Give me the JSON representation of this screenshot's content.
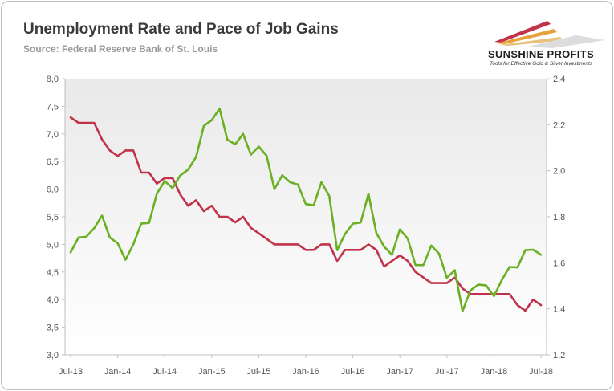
{
  "header": {
    "title": "Unemployment Rate and Pace of Job Gains",
    "subtitle": "Source: Federal Reserve Bank of St. Louis"
  },
  "logo": {
    "name": "SUNSHINE PROFITS",
    "tagline": "Tools for Effective Gold & Silver Investments"
  },
  "chart_data": {
    "type": "line",
    "title": "Unemployment Rate and Pace of Job Gains",
    "x_tick_labels": [
      "Jul-13",
      "Jan-14",
      "Jul-14",
      "Jan-15",
      "Jul-15",
      "Jan-16",
      "Jul-16",
      "Jan-17",
      "Jul-17",
      "Jan-18",
      "Jul-18"
    ],
    "y_left": {
      "range": [
        3.0,
        8.0
      ],
      "ticks": [
        "3,0",
        "3,5",
        "4,0",
        "4,5",
        "5,0",
        "5,5",
        "6,0",
        "6,5",
        "7,0",
        "7,5",
        "8,0"
      ]
    },
    "y_right": {
      "range": [
        1.2,
        2.4
      ],
      "ticks": [
        "1,2",
        "1,4",
        "1,6",
        "1,8",
        "2,0",
        "2,2",
        "2,4"
      ]
    },
    "grid": false,
    "legend": "none",
    "series": [
      {
        "axis": "left",
        "color": "#c0334a",
        "values": [
          7.3,
          7.2,
          7.2,
          7.2,
          6.9,
          6.7,
          6.6,
          6.7,
          6.7,
          6.3,
          6.3,
          6.1,
          6.2,
          6.2,
          5.9,
          5.7,
          5.8,
          5.6,
          5.7,
          5.5,
          5.5,
          5.4,
          5.5,
          5.3,
          5.2,
          5.1,
          5.0,
          5.0,
          5.0,
          5.0,
          4.9,
          4.9,
          5.0,
          5.0,
          4.7,
          4.9,
          4.9,
          4.9,
          5.0,
          4.9,
          4.6,
          4.7,
          4.8,
          4.7,
          4.5,
          4.4,
          4.3,
          4.3,
          4.3,
          4.4,
          4.2,
          4.1,
          4.1,
          4.1,
          4.1,
          4.1,
          4.1,
          3.9,
          3.8,
          4.0,
          3.9
        ]
      },
      {
        "axis": "right",
        "color": "#6ab023",
        "values": [
          1.645,
          1.71,
          1.713,
          1.75,
          1.805,
          1.71,
          1.685,
          1.613,
          1.68,
          1.77,
          1.773,
          1.9,
          1.955,
          1.925,
          1.98,
          2.005,
          2.06,
          2.195,
          2.22,
          2.27,
          2.135,
          2.115,
          2.16,
          2.07,
          2.105,
          2.065,
          1.92,
          1.98,
          1.95,
          1.94,
          1.855,
          1.85,
          1.95,
          1.89,
          1.655,
          1.725,
          1.77,
          1.775,
          1.9,
          1.73,
          1.67,
          1.635,
          1.745,
          1.705,
          1.59,
          1.59,
          1.675,
          1.64,
          1.535,
          1.568,
          1.39,
          1.48,
          1.505,
          1.502,
          1.455,
          1.525,
          1.582,
          1.58,
          1.655,
          1.657,
          1.635
        ]
      }
    ]
  }
}
